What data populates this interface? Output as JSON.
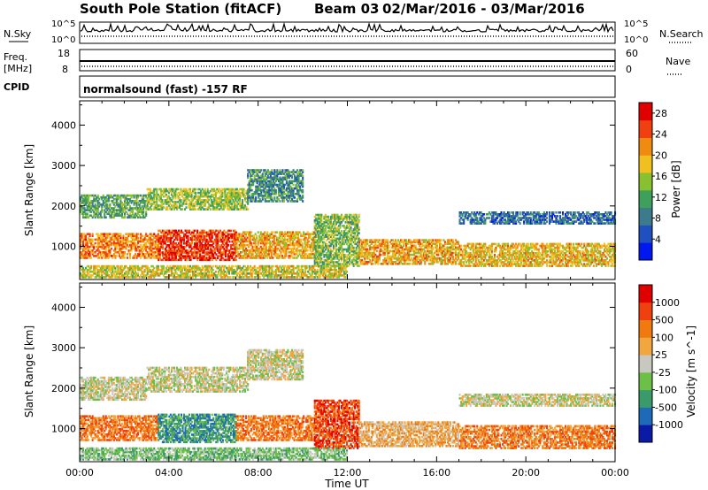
{
  "header": {
    "station": "South Pole Station (fitACF)",
    "beam": "Beam 03",
    "dates": "02/Mar/2016 - 03/Mar/2016"
  },
  "top_panels": {
    "nsky_label": "N.Sky",
    "nsky_ticks": [
      "10^5",
      "10^0"
    ],
    "nsearch_label": "N.Search",
    "nsearch_ticks": [
      "10^5",
      "10^0"
    ],
    "freq_label_1": "Freq.",
    "freq_label_2": "[MHz]",
    "freq_ticks": [
      "18",
      "8"
    ],
    "nave_label": "Nave",
    "nave_ticks": [
      "60",
      "0"
    ],
    "cpid_label": "CPID",
    "cpid_text": "normalsound (fast) -157 RF"
  },
  "chart_data": [
    {
      "type": "heatmap",
      "title": "",
      "xlabel": "Time UT",
      "ylabel": "Slant Range [km]",
      "x_ticks": [
        "00:00",
        "04:00",
        "08:00",
        "12:00",
        "16:00",
        "20:00",
        "00:00"
      ],
      "xlim_hours": [
        0,
        24
      ],
      "y_ticks": [
        1000,
        2000,
        3000,
        4000
      ],
      "ylim": [
        180,
        4600
      ],
      "colorbar": {
        "label": "Power [dB]",
        "ticks": [
          4,
          8,
          12,
          16,
          20,
          24,
          28
        ],
        "range": [
          0,
          30
        ],
        "colors": [
          "#0018f0",
          "#2050c0",
          "#3c7a8c",
          "#3ea05a",
          "#88c030",
          "#f0c020",
          "#f08a10",
          "#f04010",
          "#e00000"
        ]
      },
      "bands": [
        {
          "t0": 0.0,
          "t1": 3.0,
          "r0": 1700,
          "r1": 2250,
          "level": 12
        },
        {
          "t0": 3.0,
          "t1": 7.5,
          "r0": 1900,
          "r1": 2400,
          "level": 15
        },
        {
          "t0": 7.5,
          "t1": 10.0,
          "r0": 2100,
          "r1": 2900,
          "level": 10
        },
        {
          "t0": 0.0,
          "t1": 3.5,
          "r0": 700,
          "r1": 1300,
          "level": 22
        },
        {
          "t0": 3.5,
          "t1": 7.0,
          "r0": 650,
          "r1": 1400,
          "level": 26
        },
        {
          "t0": 7.0,
          "t1": 10.5,
          "r0": 700,
          "r1": 1350,
          "level": 20
        },
        {
          "t0": 10.5,
          "t1": 12.5,
          "r0": 500,
          "r1": 1800,
          "level": 14
        },
        {
          "t0": 12.5,
          "t1": 17.0,
          "r0": 550,
          "r1": 1150,
          "level": 20
        },
        {
          "t0": 17.0,
          "t1": 24.0,
          "r0": 500,
          "r1": 1050,
          "level": 19
        },
        {
          "t0": 17.0,
          "t1": 24.0,
          "r0": 1550,
          "r1": 1850,
          "level": 7
        },
        {
          "t0": 0.0,
          "t1": 12.0,
          "r0": 220,
          "r1": 520,
          "level": 17
        }
      ]
    },
    {
      "type": "heatmap",
      "title": "",
      "xlabel": "Time UT",
      "ylabel": "Slant Range [km]",
      "x_ticks": [
        "00:00",
        "04:00",
        "08:00",
        "12:00",
        "16:00",
        "20:00",
        "00:00"
      ],
      "xlim_hours": [
        0,
        24
      ],
      "y_ticks": [
        1000,
        2000,
        3000,
        4000
      ],
      "ylim": [
        180,
        4600
      ],
      "colorbar": {
        "label": "Velocity [m s^-1]",
        "ticks": [
          1000,
          500,
          100,
          25,
          -25,
          -100,
          -500,
          -1000
        ],
        "colors": [
          "#0b1aa6",
          "#1f6ab8",
          "#3b9a6a",
          "#6cc048",
          "#c8c8c0",
          "#f2a640",
          "#f07a10",
          "#f04010",
          "#e00000"
        ]
      },
      "bands": [
        {
          "t0": 0.0,
          "t1": 3.0,
          "r0": 1700,
          "r1": 2250,
          "cat": 4
        },
        {
          "t0": 3.0,
          "t1": 7.5,
          "r0": 1900,
          "r1": 2500,
          "cat": 4
        },
        {
          "t0": 7.5,
          "t1": 10.0,
          "r0": 2200,
          "r1": 2950,
          "cat": 4
        },
        {
          "t0": 0.0,
          "t1": 3.5,
          "r0": 700,
          "r1": 1300,
          "cat": 6
        },
        {
          "t0": 3.5,
          "t1": 7.0,
          "r0": 650,
          "r1": 1350,
          "cat": 2
        },
        {
          "t0": 7.0,
          "t1": 10.5,
          "r0": 700,
          "r1": 1300,
          "cat": 6
        },
        {
          "t0": 10.5,
          "t1": 12.5,
          "r0": 500,
          "r1": 1700,
          "cat": 7
        },
        {
          "t0": 12.5,
          "t1": 17.0,
          "r0": 550,
          "r1": 1150,
          "cat": 5
        },
        {
          "t0": 17.0,
          "t1": 24.0,
          "r0": 500,
          "r1": 1050,
          "cat": 6
        },
        {
          "t0": 17.0,
          "t1": 24.0,
          "r0": 1550,
          "r1": 1850,
          "cat": 4
        },
        {
          "t0": 0.0,
          "t1": 12.0,
          "r0": 220,
          "r1": 520,
          "cat": 3
        }
      ]
    }
  ]
}
